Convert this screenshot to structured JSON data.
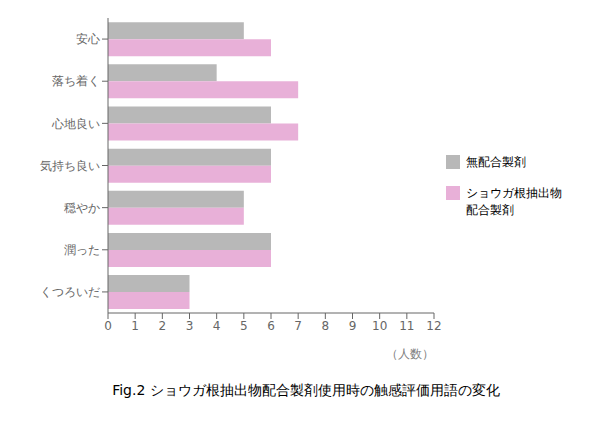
{
  "chart_data": {
    "type": "bar",
    "orientation": "horizontal",
    "title": "Fig.2 ショウガ根抽出物配合製剤使用時の触感評価用語の変化",
    "categories": [
      "安心",
      "落ち着く",
      "心地良い",
      "気持ち良い",
      "穏やか",
      "潤った",
      "くつろいだ"
    ],
    "series": [
      {
        "name": "無配合製剤",
        "color": "#b8b8b8",
        "values": [
          5,
          4,
          6,
          6,
          5,
          6,
          3
        ]
      },
      {
        "name": "ショウガ根抽出物\n配合製剤",
        "color": "#e8b0d8",
        "values": [
          6,
          7,
          7,
          6,
          5,
          6,
          3
        ]
      }
    ],
    "xlabel": "（人数）",
    "xlim": [
      0,
      12
    ],
    "xticks": [
      0,
      1,
      2,
      3,
      4,
      5,
      6,
      7,
      8,
      9,
      10,
      11,
      12
    ],
    "grid": false,
    "legend": "right"
  }
}
